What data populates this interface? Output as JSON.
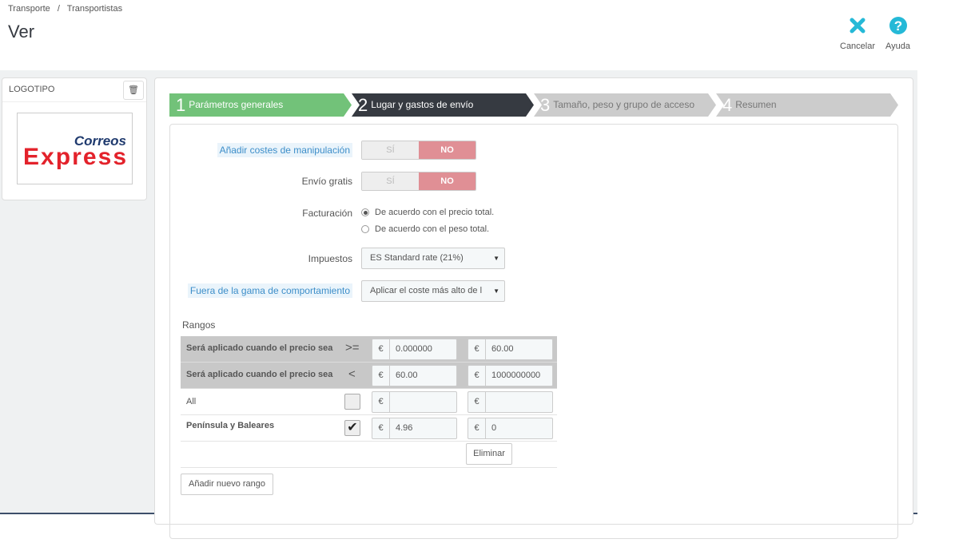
{
  "breadcrumb": [
    "Transporte",
    "/",
    "Transportistas"
  ],
  "page_title": "Ver",
  "toolbar": {
    "cancel": "Cancelar",
    "help": "Ayuda"
  },
  "logo_panel": {
    "title": "LOGOTIPO",
    "logo_text_top": "Correos",
    "logo_text_bottom": "Express"
  },
  "steps": [
    {
      "num": "1",
      "label": "Parámetros generales",
      "state": "done"
    },
    {
      "num": "2",
      "label": "Lugar y gastos de envío",
      "state": "active"
    },
    {
      "num": "3",
      "label": "Tamaño, peso y grupo de acceso",
      "state": "pending"
    },
    {
      "num": "4",
      "label": "Resumen",
      "state": "pending"
    }
  ],
  "form": {
    "handling": {
      "label": "Añadir costes de manipulación",
      "yes": "SÍ",
      "no": "NO",
      "value": "NO"
    },
    "free_shipping": {
      "label": "Envío gratis",
      "yes": "SÍ",
      "no": "NO",
      "value": "NO"
    },
    "billing": {
      "label": "Facturación",
      "options": [
        "De acuerdo con el precio total.",
        "De acuerdo con el peso total."
      ],
      "selected": 0
    },
    "tax": {
      "label": "Impuestos",
      "value": "ES Standard rate (21%)"
    },
    "out_of_range": {
      "label": "Fuera de la gama de comportamiento",
      "value": "Aplicar el coste más alto de l"
    }
  },
  "ranges": {
    "title": "Rangos",
    "currency": "€",
    "row_from": {
      "label": "Será aplicado cuando el precio sea",
      "op": ">=",
      "values": [
        "0.000000",
        "60.00"
      ]
    },
    "row_to": {
      "label": "Será aplicado cuando el precio sea",
      "op": "<",
      "values": [
        "60.00",
        "1000000000"
      ]
    },
    "zones": [
      {
        "name": "All",
        "checked": false,
        "values": [
          "",
          ""
        ]
      },
      {
        "name": "Península y Baleares",
        "checked": true,
        "values": [
          "4.96",
          "0"
        ]
      }
    ],
    "delete_label": "Eliminar",
    "add_label": "Añadir nuevo rango"
  },
  "colors": {
    "done": "#72c279",
    "active": "#363a41",
    "pending": "#cccccc",
    "accent": "#25b9d7",
    "no": "#e08f95"
  }
}
